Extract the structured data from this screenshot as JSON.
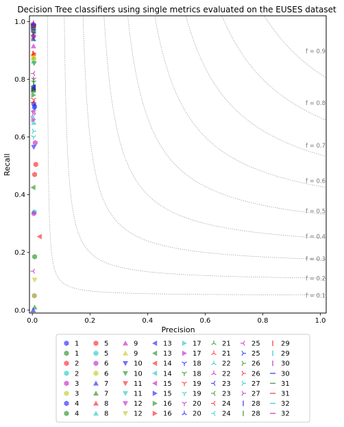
{
  "chart_data": {
    "type": "scatter",
    "title": "Decision Tree classifiers using single metrics evaluated on the EUSES dataset",
    "xlabel": "Precision",
    "ylabel": "Recall",
    "xlim": [
      -0.01,
      1.02
    ],
    "ylim": [
      -0.01,
      1.02
    ],
    "xticks": [
      "0.0",
      "0.2",
      "0.4",
      "0.6",
      "0.8",
      "1.0"
    ],
    "yticks": [
      "0.0",
      "0.2",
      "0.4",
      "0.6",
      "0.8",
      "1.0"
    ],
    "grid": false,
    "legend_position": "bottom-center",
    "f_contours": [
      {
        "f": 0.1,
        "label": "f = 0.1"
      },
      {
        "f": 0.2,
        "label": "f = 0.2"
      },
      {
        "f": 0.3,
        "label": "f = 0.3"
      },
      {
        "f": 0.4,
        "label": "f = 0.4"
      },
      {
        "f": 0.5,
        "label": "f = 0.5"
      },
      {
        "f": 0.6,
        "label": "f = 0.6"
      },
      {
        "f": 0.7,
        "label": "f = 0.7"
      },
      {
        "f": 0.8,
        "label": "f = 0.8"
      },
      {
        "f": 0.9,
        "label": "f = 0.9"
      }
    ],
    "series": [
      {
        "name": "1",
        "marker": "hexagon",
        "color": "#0000ff",
        "x": [
          0.003
        ],
        "y": [
          0.99
        ]
      },
      {
        "name": "1",
        "marker": "hexagon",
        "color": "#008000",
        "x": [
          0.003
        ],
        "y": [
          0.98
        ]
      },
      {
        "name": "2",
        "marker": "hexagon",
        "color": "#ff0000",
        "x": [
          0.003
        ],
        "y": [
          0.985
        ]
      },
      {
        "name": "2",
        "marker": "hexagon",
        "color": "#00bfbf",
        "x": [
          0.004
        ],
        "y": [
          0.97
        ]
      },
      {
        "name": "3",
        "marker": "hexagon",
        "color": "#bf00bf",
        "x": [
          0.004
        ],
        "y": [
          0.95
        ]
      },
      {
        "name": "3",
        "marker": "hexagon",
        "color": "#bfbf00",
        "x": [
          0.004
        ],
        "y": [
          0.88
        ]
      },
      {
        "name": "4",
        "marker": "hexagon",
        "color": "#0000ff",
        "x": [
          0.005
        ],
        "y": [
          0.715
        ]
      },
      {
        "name": "4",
        "marker": "hexagon",
        "color": "#008000",
        "x": [
          0.004
        ],
        "y": [
          0.76
        ]
      },
      {
        "name": "5",
        "marker": "hexagon",
        "color": "#ff0000",
        "x": [
          0.012
        ],
        "y": [
          0.505
        ]
      },
      {
        "name": "5",
        "marker": "hexagon",
        "color": "#00bfbf",
        "x": [
          0.007
        ],
        "y": [
          0.34
        ]
      },
      {
        "name": "6",
        "marker": "hexagon",
        "color": "#bf00bf",
        "x": [
          0.005
        ],
        "y": [
          0.335
        ]
      },
      {
        "name": "6",
        "marker": "hexagon",
        "color": "#bfbf00",
        "x": [
          0.005
        ],
        "y": [
          0.87
        ]
      },
      {
        "name": "7",
        "marker": "triangle-up",
        "color": "#0000ff",
        "x": [
          0.004
        ],
        "y": [
          0.94
        ]
      },
      {
        "name": "7",
        "marker": "triangle-up",
        "color": "#008000",
        "x": [
          0.008
        ],
        "y": [
          0.01
        ]
      },
      {
        "name": "8",
        "marker": "triangle-up",
        "color": "#ff0000",
        "x": [
          0.004
        ],
        "y": [
          0.89
        ]
      },
      {
        "name": "8",
        "marker": "triangle-up",
        "color": "#00bfbf",
        "x": [
          0.005
        ],
        "y": [
          0.65
        ]
      },
      {
        "name": "9",
        "marker": "triangle-up",
        "color": "#bf00bf",
        "x": [
          0.004
        ],
        "y": [
          0.915
        ]
      },
      {
        "name": "9",
        "marker": "triangle-up",
        "color": "#bfbf00",
        "x": [
          0.004
        ],
        "y": [
          0.875
        ]
      },
      {
        "name": "10",
        "marker": "triangle-down",
        "color": "#0000ff",
        "x": [
          0.005
        ],
        "y": [
          0.565
        ]
      },
      {
        "name": "10",
        "marker": "triangle-down",
        "color": "#008000",
        "x": [
          0.006
        ],
        "y": [
          0.855
        ]
      },
      {
        "name": "11",
        "marker": "triangle-down",
        "color": "#ff0000",
        "x": [
          0.004
        ],
        "y": [
          0.985
        ]
      },
      {
        "name": "11",
        "marker": "triangle-down",
        "color": "#00bfbf",
        "x": [
          0.004
        ],
        "y": [
          0.96
        ]
      },
      {
        "name": "12",
        "marker": "triangle-down",
        "color": "#bf00bf",
        "x": [
          0.004
        ],
        "y": [
          0.945
        ]
      },
      {
        "name": "12",
        "marker": "triangle-down",
        "color": "#bfbf00",
        "x": [
          0.008
        ],
        "y": [
          0.105
        ]
      },
      {
        "name": "13",
        "marker": "triangle-left",
        "color": "#0000ff",
        "x": [
          0.004
        ],
        "y": [
          0.77
        ]
      },
      {
        "name": "13",
        "marker": "triangle-left",
        "color": "#008000",
        "x": [
          0.003
        ],
        "y": [
          0.425
        ]
      },
      {
        "name": "14",
        "marker": "triangle-left",
        "color": "#ff0000",
        "x": [
          0.025
        ],
        "y": [
          0.255
        ]
      },
      {
        "name": "14",
        "marker": "triangle-left",
        "color": "#00bfbf",
        "x": [
          0.005
        ],
        "y": [
          0.7
        ]
      },
      {
        "name": "15",
        "marker": "triangle-left",
        "color": "#bf00bf",
        "x": [
          0.003
        ],
        "y": [
          0.69
        ]
      },
      {
        "name": "15",
        "marker": "triangle-right",
        "color": "#0000ff",
        "x": [
          0.004
        ],
        "y": [
          0.765
        ]
      },
      {
        "name": "16",
        "marker": "triangle-right",
        "color": "#008000",
        "x": [
          0.004
        ],
        "y": [
          0.745
        ]
      },
      {
        "name": "16",
        "marker": "triangle-right",
        "color": "#ff0000",
        "x": [
          0.004
        ],
        "y": [
          0.975
        ]
      },
      {
        "name": "17",
        "marker": "triangle-right",
        "color": "#00bfbf",
        "x": [
          0.004
        ],
        "y": [
          0.985
        ]
      },
      {
        "name": "17",
        "marker": "triangle-right",
        "color": "#bf00bf",
        "x": [
          0.004
        ],
        "y": [
          0.66
        ]
      },
      {
        "name": "18",
        "marker": "tri-down",
        "color": "#0000ff",
        "x": [
          0.004
        ],
        "y": [
          0.96
        ]
      },
      {
        "name": "18",
        "marker": "tri-down",
        "color": "#008000",
        "x": [
          0.005
        ],
        "y": [
          0.79
        ]
      },
      {
        "name": "19",
        "marker": "tri-down",
        "color": "#ff0000",
        "x": [
          0.004
        ],
        "y": [
          0.73
        ]
      },
      {
        "name": "19",
        "marker": "tri-down",
        "color": "#00bfbf",
        "x": [
          0.004
        ],
        "y": [
          0.6
        ]
      },
      {
        "name": "20",
        "marker": "tri-down",
        "color": "#bf00bf",
        "x": [
          0.005
        ],
        "y": [
          0.8
        ]
      },
      {
        "name": "20",
        "marker": "tri-up",
        "color": "#0000ff",
        "x": [
          0.004
        ],
        "y": [
          0.975
        ]
      },
      {
        "name": "21",
        "marker": "tri-up",
        "color": "#008000",
        "x": [
          0.004
        ],
        "y": [
          0.78
        ]
      },
      {
        "name": "21",
        "marker": "tri-up",
        "color": "#ff0000",
        "x": [
          0.004
        ],
        "y": [
          0.77
        ]
      },
      {
        "name": "22",
        "marker": "tri-up",
        "color": "#00bfbf",
        "x": [
          0.004
        ],
        "y": [
          0.86
        ]
      },
      {
        "name": "22",
        "marker": "tri-up",
        "color": "#bf00bf",
        "x": [
          0.004
        ],
        "y": [
          0.99
        ]
      },
      {
        "name": "23",
        "marker": "tri-left",
        "color": "#0000ff",
        "x": [
          0.004
        ],
        "y": [
          0.975
        ]
      },
      {
        "name": "23",
        "marker": "tri-left",
        "color": "#008000",
        "x": [
          0.004
        ],
        "y": [
          0.94
        ]
      },
      {
        "name": "24",
        "marker": "tri-left",
        "color": "#ff0000",
        "x": [
          0.004
        ],
        "y": [
          0.72
        ]
      },
      {
        "name": "24",
        "marker": "tri-left",
        "color": "#00bfbf",
        "x": [
          0.004
        ],
        "y": [
          0.67
        ]
      },
      {
        "name": "25",
        "marker": "tri-left",
        "color": "#bf00bf",
        "x": [
          0.004
        ],
        "y": [
          0.82
        ]
      },
      {
        "name": "25",
        "marker": "tri-right",
        "color": "#0000ff",
        "x": [
          0.004
        ],
        "y": [
          0.985
        ]
      },
      {
        "name": "26",
        "marker": "tri-right",
        "color": "#008000",
        "x": [
          0.004
        ],
        "y": [
          0.96
        ]
      },
      {
        "name": "26",
        "marker": "tri-right",
        "color": "#ff0000",
        "x": [
          0.004
        ],
        "y": [
          0.89
        ]
      },
      {
        "name": "27",
        "marker": "tri-right",
        "color": "#00bfbf",
        "x": [
          0.004
        ],
        "y": [
          0.62
        ]
      },
      {
        "name": "27",
        "marker": "tri-right",
        "color": "#bf00bf",
        "x": [
          0.003
        ],
        "y": [
          0.68
        ]
      },
      {
        "name": "28",
        "marker": "vline",
        "color": "#0000ff",
        "x": [
          0.004
        ],
        "y": [
          0.99
        ]
      },
      {
        "name": "28",
        "marker": "vline",
        "color": "#008000",
        "x": [
          0.004
        ],
        "y": [
          0.8
        ]
      },
      {
        "name": "29",
        "marker": "vline",
        "color": "#ff0000",
        "x": [
          0.004
        ],
        "y": [
          0.965
        ]
      },
      {
        "name": "29",
        "marker": "vline",
        "color": "#00bfbf",
        "x": [
          0.004
        ],
        "y": [
          0.985
        ]
      },
      {
        "name": "30",
        "marker": "vline",
        "color": "#bf00bf",
        "x": [
          0.004
        ],
        "y": [
          0.995
        ]
      },
      {
        "name": "30",
        "marker": "hline",
        "color": "#0000ff",
        "x": [
          0.004
        ],
        "y": [
          0.99
        ]
      },
      {
        "name": "31",
        "marker": "hline",
        "color": "#008000",
        "x": [
          0.004
        ],
        "y": [
          0.985
        ]
      },
      {
        "name": "31",
        "marker": "hline",
        "color": "#ff0000",
        "x": [
          0.004
        ],
        "y": [
          0.98
        ]
      },
      {
        "name": "32",
        "marker": "hline",
        "color": "#00bfbf",
        "x": [
          0.004
        ],
        "y": [
          0.975
        ]
      },
      {
        "name": "32",
        "marker": "hline",
        "color": "#bf00bf",
        "x": [
          0.004
        ],
        "y": [
          0.99
        ]
      }
    ],
    "extra_points": [
      {
        "marker": "hexagon",
        "color": "#008000",
        "x": 0.008,
        "y": 0.185
      },
      {
        "marker": "hexagon",
        "color": "#808000",
        "x": 0.007,
        "y": 0.05
      },
      {
        "marker": "hexagon",
        "color": "#ff0000",
        "x": 0.008,
        "y": 0.47
      },
      {
        "marker": "hexagon",
        "color": "#bf00bf",
        "x": 0.01,
        "y": 0.58
      },
      {
        "marker": "hexagon",
        "color": "#0000ff",
        "x": 0.008,
        "y": 0.705
      },
      {
        "marker": "triangle-up",
        "color": "#008000",
        "x": 0.004,
        "y": 0.765
      },
      {
        "marker": "tri-left",
        "color": "#bf00bf",
        "x": 0.003,
        "y": 0.135
      },
      {
        "marker": "triangle-left",
        "color": "#0000ff",
        "x": 0.004,
        "y": 0.775
      },
      {
        "marker": "triangle-up",
        "color": "#0000ff",
        "x": 0.003,
        "y": 0.0
      }
    ]
  }
}
